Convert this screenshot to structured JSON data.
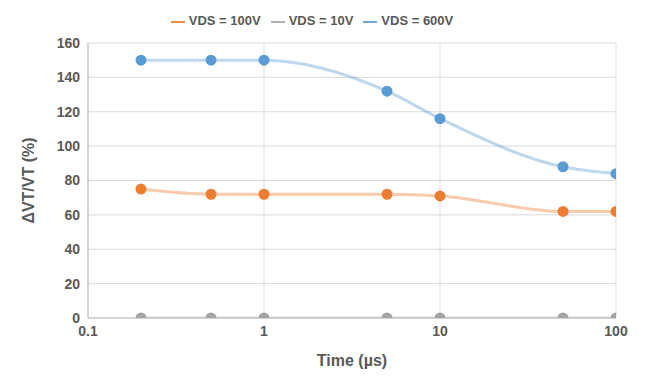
{
  "chart_data": {
    "type": "line",
    "x_label": "Time (µs)",
    "y_label": "ΔVT/VT (%)",
    "x": [
      0.2,
      0.5,
      1,
      5,
      10,
      50,
      100
    ],
    "series": [
      {
        "name": "VDS = 600V",
        "color": "#5b9bd5",
        "values": [
          150,
          150,
          150,
          132,
          116,
          88,
          84
        ]
      },
      {
        "name": "VDS = 100V",
        "color": "#ed7d31",
        "values": [
          75,
          72,
          72,
          72,
          71,
          62,
          62
        ]
      },
      {
        "name": "VDS = 10V",
        "color": "#a5a5a5",
        "values": [
          0,
          0,
          0,
          0,
          0,
          0,
          0
        ]
      }
    ],
    "xlim": [
      0.1,
      100
    ],
    "xticks": [
      0.1,
      1,
      10,
      100
    ],
    "ylim": [
      0,
      160
    ],
    "yticks": [
      0,
      20,
      40,
      60,
      80,
      100,
      120,
      140,
      160
    ],
    "log": "x",
    "grid": true,
    "legend": "top",
    "marker": "circle"
  }
}
